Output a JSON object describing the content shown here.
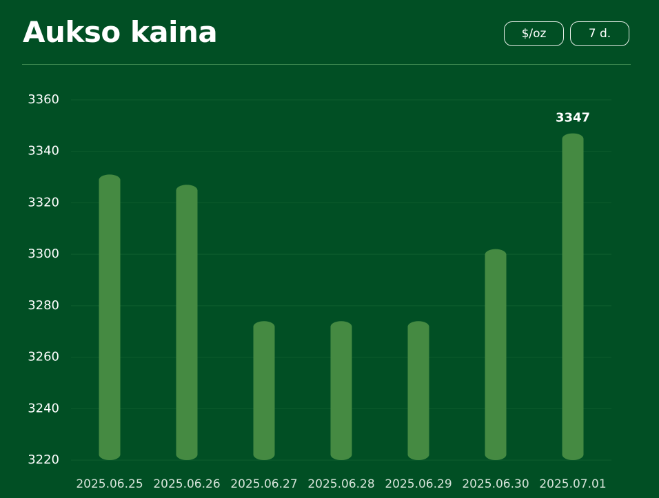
{
  "chart_data": {
    "type": "bar",
    "title": "Aukso kaina",
    "categories": [
      "2025.06.25",
      "2025.06.26",
      "2025.06.27",
      "2025.06.28",
      "2025.06.29",
      "2025.06.30",
      "2025.07.01"
    ],
    "values": [
      3331,
      3327,
      3274,
      3274,
      3274,
      3302,
      3347
    ],
    "color": "#458a42",
    "ylim": [
      3220,
      3360
    ],
    "yticks": [
      3220,
      3240,
      3260,
      3280,
      3300,
      3320,
      3340,
      3360
    ],
    "grid": true
  },
  "controls": [
    "$/oz",
    "7 d."
  ]
}
